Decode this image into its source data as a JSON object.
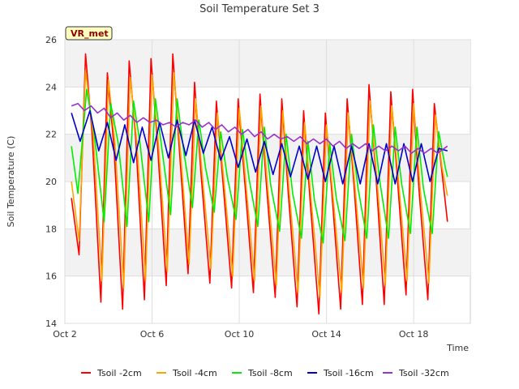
{
  "chart_data": {
    "type": "line",
    "title": "Soil Temperature Set 3",
    "xlabel": "Time",
    "ylabel": "Soil Temperature (C)",
    "badge": "VR_met",
    "xlim": [
      2.0,
      20.6
    ],
    "ylim": [
      14,
      26
    ],
    "x_ticks": [
      {
        "value": 2,
        "label": "Oct 2"
      },
      {
        "value": 6,
        "label": "Oct 6"
      },
      {
        "value": 10,
        "label": "Oct 10"
      },
      {
        "value": 14,
        "label": "Oct 14"
      },
      {
        "value": 18,
        "label": "Oct 18"
      }
    ],
    "y_ticks": [
      14,
      16,
      18,
      20,
      22,
      24,
      26
    ],
    "grid": true,
    "legend_position": "bottom",
    "series": [
      {
        "name": "Tsoil -2cm",
        "color": "#ff0000",
        "x": [
          2.3,
          2.65,
          2.95,
          3.25,
          3.65,
          3.95,
          4.25,
          4.65,
          4.95,
          5.25,
          5.65,
          5.95,
          6.25,
          6.65,
          6.95,
          7.25,
          7.65,
          7.95,
          8.25,
          8.65,
          8.95,
          9.25,
          9.65,
          9.95,
          10.25,
          10.65,
          10.95,
          11.25,
          11.65,
          11.95,
          12.25,
          12.65,
          12.95,
          13.25,
          13.65,
          13.95,
          14.25,
          14.65,
          14.95,
          15.25,
          15.65,
          15.95,
          16.25,
          16.65,
          16.95,
          17.25,
          17.65,
          17.95,
          18.25,
          18.65,
          18.95,
          19.25,
          19.55
        ],
        "y": [
          19.3,
          16.9,
          25.4,
          22.0,
          14.9,
          24.6,
          21.5,
          14.6,
          25.1,
          21.8,
          15.0,
          25.2,
          21.6,
          15.6,
          25.4,
          21.4,
          16.1,
          24.2,
          20.3,
          15.7,
          23.4,
          20.0,
          15.5,
          23.5,
          20.0,
          15.3,
          23.7,
          19.8,
          15.1,
          23.5,
          19.5,
          14.7,
          23.0,
          19.2,
          14.4,
          22.9,
          19.5,
          14.6,
          23.5,
          20.0,
          14.8,
          24.1,
          20.5,
          14.8,
          23.8,
          20.2,
          15.2,
          23.9,
          19.6,
          15.0,
          23.3,
          20.8,
          18.3
        ]
      },
      {
        "name": "Tsoil -4cm",
        "color": "#ffa500",
        "x": [
          2.3,
          2.65,
          2.95,
          3.3,
          3.7,
          4.0,
          4.3,
          4.7,
          5.0,
          5.3,
          5.7,
          6.0,
          6.3,
          6.7,
          7.0,
          7.3,
          7.7,
          8.0,
          8.3,
          8.7,
          9.0,
          9.3,
          9.7,
          10.0,
          10.3,
          10.7,
          11.0,
          11.3,
          11.7,
          12.0,
          12.3,
          12.7,
          13.0,
          13.3,
          13.7,
          14.0,
          14.3,
          14.7,
          15.0,
          15.3,
          15.7,
          16.0,
          16.3,
          16.7,
          17.0,
          17.3,
          17.7,
          18.0,
          18.3,
          18.7,
          19.0,
          19.3,
          19.55
        ],
        "y": [
          20.0,
          17.5,
          24.7,
          22.0,
          15.8,
          24.3,
          21.6,
          15.5,
          24.4,
          21.7,
          15.8,
          24.5,
          21.5,
          16.2,
          24.6,
          21.3,
          16.5,
          23.5,
          20.3,
          16.3,
          22.9,
          20.0,
          16.0,
          23.1,
          20.0,
          15.8,
          23.2,
          19.8,
          15.6,
          23.0,
          19.5,
          15.3,
          22.5,
          19.2,
          15.1,
          22.4,
          19.4,
          15.3,
          22.9,
          19.9,
          15.5,
          23.4,
          20.3,
          15.6,
          23.2,
          20.1,
          15.8,
          23.3,
          19.7,
          15.7,
          22.8,
          20.6,
          19.4
        ]
      },
      {
        "name": "Tsoil -8cm",
        "color": "#00ee00",
        "x": [
          2.3,
          2.6,
          3.0,
          3.35,
          3.8,
          4.1,
          4.45,
          4.85,
          5.15,
          5.45,
          5.85,
          6.15,
          6.45,
          6.85,
          7.15,
          7.45,
          7.85,
          8.15,
          8.45,
          8.85,
          9.15,
          9.45,
          9.85,
          10.15,
          10.45,
          10.85,
          11.15,
          11.45,
          11.85,
          12.15,
          12.45,
          12.85,
          13.15,
          13.45,
          13.85,
          14.15,
          14.45,
          14.85,
          15.15,
          15.45,
          15.85,
          16.15,
          16.45,
          16.85,
          17.15,
          17.45,
          17.85,
          18.15,
          18.45,
          18.85,
          19.15,
          19.45,
          19.55
        ],
        "y": [
          21.5,
          19.5,
          23.9,
          22.0,
          18.3,
          23.3,
          21.6,
          18.1,
          23.4,
          21.6,
          18.3,
          23.5,
          21.4,
          18.6,
          23.5,
          21.3,
          18.9,
          22.6,
          20.6,
          18.7,
          22.1,
          20.2,
          18.4,
          22.2,
          20.1,
          18.1,
          22.3,
          19.8,
          17.9,
          22.0,
          19.5,
          17.6,
          21.7,
          19.2,
          17.4,
          21.6,
          19.3,
          17.5,
          22.0,
          19.7,
          17.6,
          22.4,
          20.0,
          17.6,
          22.3,
          19.9,
          17.8,
          22.3,
          19.7,
          17.8,
          22.1,
          20.6,
          20.2
        ]
      },
      {
        "name": "Tsoil -16cm",
        "color": "#0000cc",
        "x": [
          2.3,
          2.7,
          3.15,
          3.55,
          3.95,
          4.35,
          4.75,
          5.15,
          5.55,
          5.95,
          6.35,
          6.75,
          7.15,
          7.55,
          7.95,
          8.35,
          8.75,
          9.15,
          9.55,
          9.95,
          10.35,
          10.75,
          11.15,
          11.55,
          11.95,
          12.35,
          12.75,
          13.15,
          13.55,
          13.95,
          14.35,
          14.75,
          15.15,
          15.55,
          15.95,
          16.35,
          16.75,
          17.15,
          17.55,
          17.95,
          18.35,
          18.75,
          19.15,
          19.55
        ],
        "y": [
          22.9,
          21.7,
          23.0,
          21.3,
          22.5,
          20.9,
          22.4,
          20.8,
          22.3,
          20.9,
          22.5,
          21.0,
          22.6,
          21.1,
          22.6,
          21.2,
          22.3,
          20.9,
          21.9,
          20.6,
          21.8,
          20.4,
          21.7,
          20.3,
          21.6,
          20.2,
          21.5,
          20.1,
          21.5,
          20.0,
          21.5,
          19.9,
          21.5,
          19.9,
          21.6,
          19.9,
          21.6,
          19.9,
          21.6,
          20.0,
          21.6,
          20.0,
          21.4,
          21.3
        ]
      },
      {
        "name": "Tsoil -32cm",
        "color": "#9932cc",
        "x": [
          2.3,
          2.6,
          2.9,
          3.2,
          3.5,
          3.8,
          4.1,
          4.4,
          4.7,
          5.0,
          5.3,
          5.6,
          5.9,
          6.2,
          6.5,
          6.8,
          7.1,
          7.4,
          7.7,
          8.0,
          8.3,
          8.6,
          8.9,
          9.2,
          9.5,
          9.8,
          10.1,
          10.4,
          10.7,
          11.0,
          11.3,
          11.6,
          11.9,
          12.2,
          12.5,
          12.8,
          13.1,
          13.4,
          13.7,
          14.0,
          14.3,
          14.6,
          14.9,
          15.2,
          15.5,
          15.8,
          16.1,
          16.4,
          16.7,
          17.0,
          17.3,
          17.6,
          17.9,
          18.2,
          18.5,
          18.8,
          19.1,
          19.4,
          19.55
        ],
        "y": [
          23.2,
          23.3,
          23.0,
          23.2,
          22.9,
          23.1,
          22.7,
          22.9,
          22.6,
          22.8,
          22.5,
          22.7,
          22.5,
          22.6,
          22.4,
          22.5,
          22.3,
          22.5,
          22.4,
          22.6,
          22.3,
          22.5,
          22.2,
          22.4,
          22.1,
          22.3,
          22.0,
          22.2,
          21.9,
          22.1,
          21.8,
          22.0,
          21.8,
          21.9,
          21.7,
          21.9,
          21.6,
          21.8,
          21.6,
          21.8,
          21.5,
          21.7,
          21.4,
          21.6,
          21.4,
          21.6,
          21.3,
          21.5,
          21.3,
          21.5,
          21.3,
          21.5,
          21.2,
          21.4,
          21.2,
          21.4,
          21.2,
          21.4,
          21.5
        ]
      }
    ]
  }
}
